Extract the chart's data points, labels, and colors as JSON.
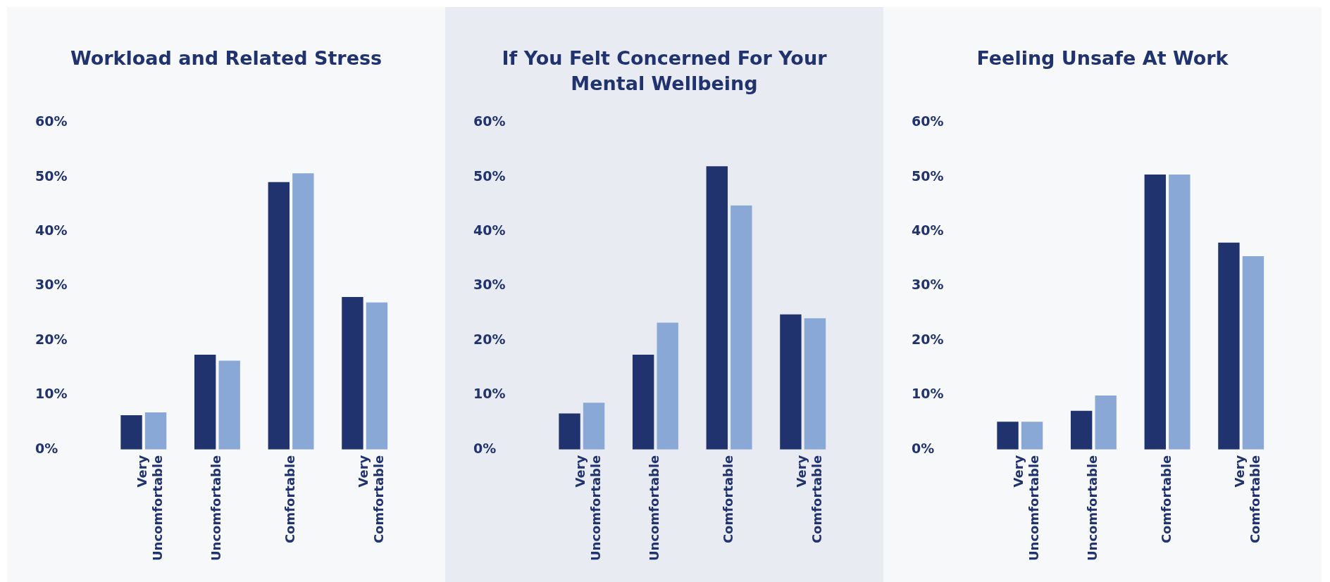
{
  "chart_data": [
    {
      "type": "bar",
      "title": "Workload and Related Stress",
      "categories": [
        "Very Uncomfortable",
        "Uncomfortable",
        "Comfortable",
        "Very Comfortable"
      ],
      "series": [
        {
          "color": "#21336e",
          "values": [
            6.3,
            17.4,
            49.1,
            28.0
          ]
        },
        {
          "color": "#8aa8d6",
          "values": [
            6.8,
            16.3,
            50.7,
            27.0
          ]
        }
      ],
      "ylim": [
        0,
        60
      ],
      "yticks": [
        {
          "value": 0,
          "label": "0%"
        },
        {
          "value": 10,
          "label": "10%"
        },
        {
          "value": 20,
          "label": "20%"
        },
        {
          "value": 30,
          "label": "30%"
        },
        {
          "value": 40,
          "label": "40%"
        },
        {
          "value": 50,
          "label": "50%"
        },
        {
          "value": 60,
          "label": "60%"
        }
      ],
      "grid": false,
      "legend": false
    },
    {
      "type": "bar",
      "title": "If You Felt Concerned For Your Mental Wellbeing",
      "categories": [
        "Very Uncomfortable",
        "Uncomfortable",
        "Comfortable",
        "Very Comfortable"
      ],
      "series": [
        {
          "color": "#21336e",
          "values": [
            6.6,
            17.4,
            52.0,
            24.8
          ]
        },
        {
          "color": "#8aa8d6",
          "values": [
            8.6,
            23.3,
            44.8,
            24.1
          ]
        }
      ],
      "ylim": [
        0,
        60
      ],
      "yticks": [
        {
          "value": 0,
          "label": "0%"
        },
        {
          "value": 10,
          "label": "10%"
        },
        {
          "value": 20,
          "label": "20%"
        },
        {
          "value": 30,
          "label": "30%"
        },
        {
          "value": 40,
          "label": "40%"
        },
        {
          "value": 50,
          "label": "50%"
        },
        {
          "value": 60,
          "label": "60%"
        }
      ],
      "grid": false,
      "legend": false
    },
    {
      "type": "bar",
      "title": "Feeling Unsafe At Work",
      "categories": [
        "Very Uncomfortable",
        "Uncomfortable",
        "Comfortable",
        "Very Comfortable"
      ],
      "series": [
        {
          "color": "#21336e",
          "values": [
            5.1,
            7.1,
            50.5,
            38.0
          ]
        },
        {
          "color": "#8aa8d6",
          "values": [
            5.1,
            9.9,
            50.5,
            35.5
          ]
        }
      ],
      "ylim": [
        0,
        60
      ],
      "yticks": [
        {
          "value": 0,
          "label": "0%"
        },
        {
          "value": 10,
          "label": "10%"
        },
        {
          "value": 20,
          "label": "20%"
        },
        {
          "value": 30,
          "label": "30%"
        },
        {
          "value": 40,
          "label": "40%"
        },
        {
          "value": 50,
          "label": "50%"
        },
        {
          "value": 60,
          "label": "60%"
        }
      ],
      "grid": false,
      "legend": false
    }
  ]
}
